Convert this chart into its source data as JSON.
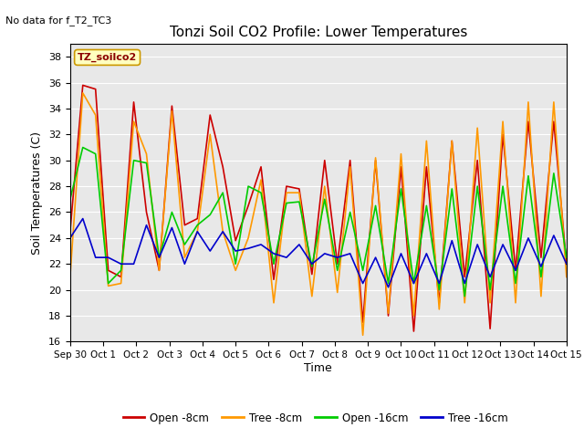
{
  "title": "Tonzi Soil CO2 Profile: Lower Temperatures",
  "no_data_text": "No data for f_T2_TC3",
  "ylabel": "Soil Temperatures (C)",
  "xlabel": "Time",
  "annotation": "TZ_soilco2",
  "ylim": [
    16,
    39
  ],
  "yticks": [
    16,
    18,
    20,
    22,
    24,
    26,
    28,
    30,
    32,
    34,
    36,
    38
  ],
  "xtick_labels": [
    "Sep 30",
    "Oct 1",
    "Oct 2",
    "Oct 3",
    "Oct 4",
    "Oct 5",
    "Oct 6",
    "Oct 7",
    "Oct 8",
    "Oct 9",
    "Oct 10",
    "Oct 11",
    "Oct 12",
    "Oct 13",
    "Oct 14",
    "Oct 15"
  ],
  "legend_labels": [
    "Open -8cm",
    "Tree -8cm",
    "Open -16cm",
    "Tree -16cm"
  ],
  "legend_colors": [
    "#cc0000",
    "#ff9900",
    "#00cc00",
    "#0000cc"
  ],
  "background_color": "#e8e8e8",
  "open8_color": "#cc0000",
  "tree8_color": "#ff9900",
  "open16_color": "#00cc00",
  "tree16_color": "#0000cc",
  "open8": [
    24.5,
    35.8,
    35.5,
    21.5,
    21.0,
    34.5,
    26.0,
    21.5,
    34.2,
    25.0,
    25.5,
    33.5,
    29.5,
    23.8,
    26.5,
    29.5,
    20.8,
    28.0,
    27.8,
    21.2,
    30.0,
    22.0,
    30.0,
    17.5,
    30.0,
    18.0,
    29.5,
    16.8,
    29.5,
    19.0,
    31.5,
    21.0,
    30.0,
    17.0,
    32.0,
    21.5,
    33.0,
    22.5,
    33.0,
    22.0
  ],
  "tree8": [
    21.0,
    35.2,
    33.5,
    20.3,
    20.5,
    33.0,
    30.5,
    21.5,
    33.8,
    22.5,
    24.5,
    32.0,
    24.5,
    21.5,
    24.0,
    28.5,
    19.0,
    27.5,
    27.5,
    19.5,
    28.0,
    19.8,
    29.5,
    16.5,
    30.2,
    18.2,
    30.5,
    18.0,
    31.5,
    18.5,
    31.5,
    19.0,
    32.5,
    19.0,
    33.0,
    19.0,
    34.5,
    19.5,
    34.5,
    21.0
  ],
  "open16": [
    27.0,
    31.0,
    30.5,
    20.5,
    21.5,
    30.0,
    29.8,
    22.5,
    26.0,
    23.5,
    25.0,
    25.8,
    27.5,
    22.0,
    28.0,
    27.5,
    22.0,
    26.7,
    26.8,
    21.8,
    27.0,
    21.5,
    26.0,
    21.5,
    26.5,
    20.5,
    27.8,
    20.5,
    26.5,
    20.0,
    27.8,
    19.5,
    28.0,
    20.0,
    28.0,
    20.5,
    28.8,
    21.0,
    29.0,
    22.5
  ],
  "tree16": [
    24.0,
    25.5,
    22.5,
    22.5,
    22.0,
    22.0,
    25.0,
    22.5,
    24.8,
    22.0,
    24.5,
    23.0,
    24.5,
    23.0,
    23.2,
    23.5,
    22.8,
    22.5,
    23.5,
    22.0,
    22.8,
    22.5,
    22.8,
    20.5,
    22.5,
    20.2,
    22.8,
    20.5,
    22.8,
    20.5,
    23.8,
    20.5,
    23.5,
    21.0,
    23.5,
    21.5,
    24.0,
    21.8,
    24.2,
    22.0
  ]
}
